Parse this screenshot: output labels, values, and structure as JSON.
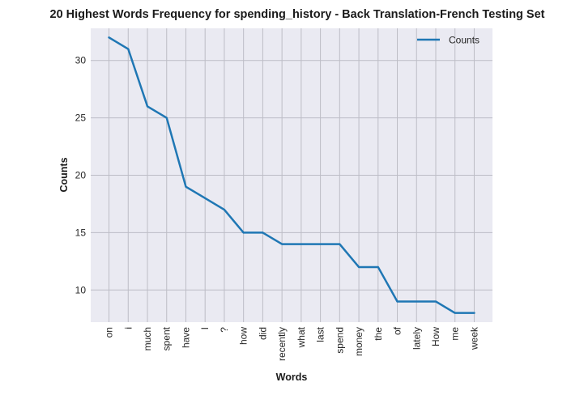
{
  "chart_data": {
    "type": "line",
    "title": "20 Highest Words Frequency for spending_history - Back Translation-French Testing Set",
    "xlabel": "Words",
    "ylabel": "Counts",
    "categories": [
      "on",
      "i",
      "much",
      "spent",
      "have",
      "I",
      "?",
      "how",
      "did",
      "recently",
      "what",
      "last",
      "spend",
      "money",
      "the",
      "of",
      "lately",
      "How",
      "me",
      "week"
    ],
    "series": [
      {
        "name": "Counts",
        "values": [
          32,
          31,
          26,
          25,
          19,
          18,
          17,
          15,
          15,
          14,
          14,
          14,
          14,
          12,
          12,
          9,
          9,
          9,
          8,
          8
        ],
        "color": "#1f77b4"
      }
    ],
    "ylim": [
      7.2,
      32.8
    ],
    "yticks": [
      10,
      15,
      20,
      25,
      30
    ],
    "grid": true,
    "legend_position": "top-right",
    "background_color": "#eaeaf2",
    "grid_color": "#bdbdc6"
  }
}
